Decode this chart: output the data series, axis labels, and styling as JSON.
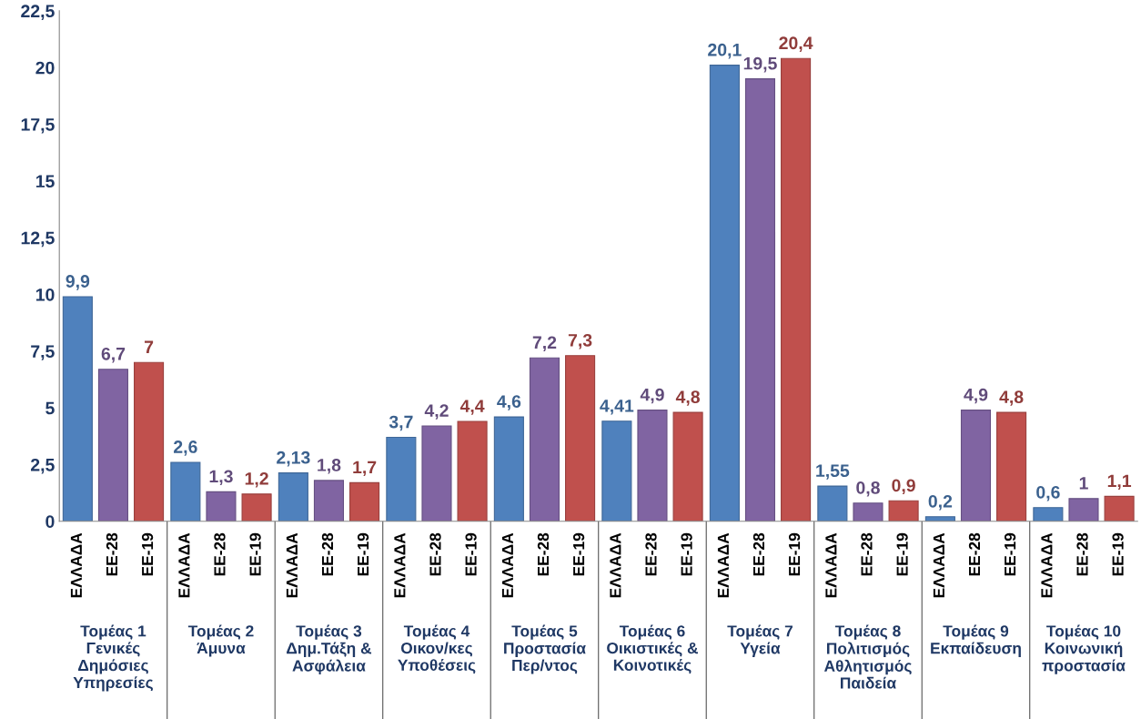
{
  "chart_data": {
    "type": "bar",
    "categories": [
      "Τομέας 1\nΓενικές\nΔημόσιες\nΥπηρεσίες",
      "Τομέας 2\nΆμυνα",
      "Τομέας 3\nΔημ.Τάξη &\nΑσφάλεια",
      "Τομέας 4\nΟικον/κες\nΥποθέσεις",
      "Τομέας 5\nΠροστασία\nΠερ/ντος",
      "Τομέας 6\nΟικιστικές &\nΚοινοτικές",
      "Τομέας 7\nΥγεία",
      "Τομέας 8\nΠολιτισμός\nΑθλητισμός\nΠαιδεία",
      "Τομέας 9\nΕκπαίδευση",
      "Τομέας 10\nΚοινωνική\nπροστασία"
    ],
    "series": [
      {
        "name": "ΕΛΛΑΔΑ",
        "color": "#4f81bd",
        "values": [
          9.9,
          2.6,
          2.13,
          3.7,
          4.6,
          4.41,
          20.1,
          1.55,
          0.2,
          0.6
        ],
        "value_labels": [
          "9,9",
          "2,6",
          "2,13",
          "3,7",
          "4,6",
          "4,41",
          "20,1",
          "1,55",
          "0,2",
          "0,6"
        ]
      },
      {
        "name": "ΕΕ-28",
        "color": "#8064a2",
        "values": [
          6.7,
          1.3,
          1.8,
          4.2,
          7.2,
          4.9,
          19.5,
          0.8,
          4.9,
          1
        ],
        "value_labels": [
          "6,7",
          "1,3",
          "1,8",
          "4,2",
          "7,2",
          "4,9",
          "19,5",
          "0,8",
          "4,9",
          "1"
        ]
      },
      {
        "name": "ΕΕ-19",
        "color": "#c0504d",
        "values": [
          7,
          1.2,
          1.7,
          4.4,
          7.3,
          4.8,
          20.4,
          0.9,
          4.8,
          1.1
        ],
        "value_labels": [
          "7",
          "1,2",
          "1,7",
          "4,4",
          "7,3",
          "4,8",
          "20,4",
          "0,9",
          "4,8",
          "1,1"
        ]
      }
    ],
    "ylim": [
      0,
      22.5
    ],
    "yticks": [
      0,
      {
        "value": 2.5,
        "label": "2,5"
      },
      5,
      {
        "value": 7.5,
        "label": "7,5"
      },
      10,
      {
        "value": 12.5,
        "label": "12,5"
      },
      15,
      {
        "value": 17.5,
        "label": "17,5"
      },
      20,
      {
        "value": 22.5,
        "label": "22,5"
      }
    ],
    "grid": false,
    "legend": false
  }
}
